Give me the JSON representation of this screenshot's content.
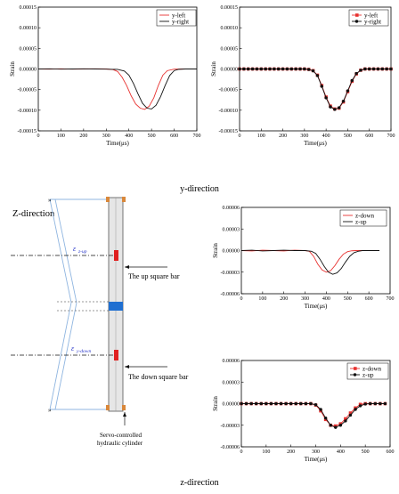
{
  "captions": {
    "y_direction": "y-direction",
    "z_direction_left": "Z-direction",
    "z_direction_bottom": "z-direction"
  },
  "diagram": {
    "label_up_bar": "The up square bar",
    "label_down_bar": "The down square bar",
    "servo_line1": "Servo-controlled",
    "servo_line2": "hydraulic cylinder",
    "gauge_up_symbol": "ε",
    "gauge_up_sub": "z-up",
    "gauge_down_symbol": "ε",
    "gauge_down_sub": "y-down",
    "colors": {
      "bar_mark": "#e02020",
      "mid_block": "#1f6fd1",
      "frame": "#8fb5e0",
      "clamp": "#d9883b"
    }
  },
  "chart_data": [
    {
      "type": "line",
      "xlabel": "Time(μs)",
      "ylabel": "Strain",
      "xlim": [
        0,
        700
      ],
      "ylim": [
        -0.00015,
        0.00015
      ],
      "xticks": [
        "0",
        "100",
        "200",
        "300",
        "400",
        "500",
        "600",
        "700"
      ],
      "yticks": [
        "0.00015",
        "0.00010",
        "0.00005",
        "0.00000",
        "-0.00005",
        "-0.00010",
        "-0.00015"
      ],
      "legend_position": "top-right",
      "series": [
        {
          "name": "y-left",
          "color": "#e8312f",
          "marker": "none",
          "x": [
            0,
            50,
            100,
            150,
            200,
            250,
            300,
            330,
            350,
            370,
            390,
            410,
            430,
            450,
            470,
            490,
            510,
            530,
            550,
            570,
            600,
            650,
            700
          ],
          "y": [
            0,
            -5e-07,
            5e-07,
            -5e-07,
            0,
            5e-07,
            0,
            -1.5e-06,
            -6e-06,
            -2e-05,
            -4e-05,
            -6.5e-05,
            -8.5e-05,
            -9.5e-05,
            -9.8e-05,
            -9e-05,
            -7e-05,
            -4e-05,
            -1.5e-05,
            -4e-06,
            -5e-07,
            0,
            0
          ]
        },
        {
          "name": "y-right",
          "color": "#111111",
          "marker": "none",
          "x": [
            0,
            50,
            100,
            150,
            200,
            250,
            300,
            350,
            380,
            400,
            420,
            440,
            460,
            480,
            500,
            520,
            540,
            560,
            580,
            600,
            620,
            650,
            700
          ],
          "y": [
            0,
            5e-07,
            -5e-07,
            0,
            5e-07,
            0,
            -5e-07,
            -1e-06,
            -5e-06,
            -1.5e-05,
            -3.5e-05,
            -6e-05,
            -8.3e-05,
            -9.5e-05,
            -9.7e-05,
            -8.8e-05,
            -6.7e-05,
            -4e-05,
            -1.6e-05,
            -4e-06,
            -8e-07,
            0,
            0
          ]
        }
      ]
    },
    {
      "type": "line",
      "xlabel": "Time(μs)",
      "ylabel": "Strain",
      "xlim": [
        0,
        700
      ],
      "ylim": [
        -0.00015,
        0.00015
      ],
      "xticks": [
        "0",
        "100",
        "200",
        "300",
        "400",
        "500",
        "600",
        "700"
      ],
      "yticks": [
        "0.00015",
        "0.00010",
        "0.00005",
        "0.00000",
        "-0.00005",
        "-0.00010",
        "-0.00015"
      ],
      "legend_position": "top-right",
      "series": [
        {
          "name": "y-left",
          "color": "#e8312f",
          "marker": "square",
          "x": [
            0,
            20,
            40,
            60,
            80,
            100,
            120,
            140,
            160,
            180,
            200,
            220,
            240,
            260,
            280,
            300,
            320,
            340,
            360,
            380,
            400,
            420,
            440,
            460,
            480,
            500,
            520,
            540,
            560,
            580,
            600,
            620,
            640,
            660,
            680,
            700
          ],
          "y": [
            0,
            0,
            0,
            0,
            0,
            0,
            0,
            0,
            0,
            0,
            0,
            0,
            0,
            0,
            0,
            0,
            -1e-06,
            -4e-06,
            -1.5e-05,
            -4e-05,
            -6.8e-05,
            -9e-05,
            -9.7e-05,
            -9.5e-05,
            -8e-05,
            -5.5e-05,
            -3e-05,
            -1.2e-05,
            -3e-06,
            0,
            0,
            0,
            0,
            0,
            0,
            0
          ]
        },
        {
          "name": "y-right",
          "color": "#111111",
          "marker": "circle",
          "x": [
            0,
            20,
            40,
            60,
            80,
            100,
            120,
            140,
            160,
            180,
            200,
            220,
            240,
            260,
            280,
            300,
            320,
            340,
            360,
            380,
            400,
            420,
            440,
            460,
            480,
            500,
            520,
            540,
            560,
            580,
            600,
            620,
            640,
            660,
            680,
            700
          ],
          "y": [
            0,
            0,
            0,
            0,
            0,
            0,
            0,
            0,
            0,
            0,
            0,
            0,
            0,
            0,
            0,
            0,
            -1.2e-06,
            -4.5e-06,
            -1.6e-05,
            -4.2e-05,
            -7e-05,
            -9.2e-05,
            -9.8e-05,
            -9.4e-05,
            -7.8e-05,
            -5.3e-05,
            -2.8e-05,
            -1.1e-05,
            -3e-06,
            0,
            0,
            0,
            0,
            0,
            0,
            0
          ]
        }
      ]
    },
    {
      "type": "line",
      "xlabel": "Time(μs)",
      "ylabel": "Strain",
      "xlim": [
        0,
        700
      ],
      "ylim": [
        -6e-05,
        6e-05
      ],
      "xticks": [
        "0",
        "100",
        "200",
        "300",
        "400",
        "500",
        "600",
        "700"
      ],
      "yticks": [
        "0.00006",
        "0.00003",
        "0.00000",
        "-0.00003",
        "-0.00006"
      ],
      "legend_position": "top-right",
      "series": [
        {
          "name": "z-down",
          "color": "#e8312f",
          "marker": "none",
          "x": [
            0,
            50,
            100,
            150,
            200,
            250,
            300,
            320,
            340,
            360,
            380,
            400,
            420,
            440,
            460,
            480,
            500,
            520,
            540,
            560,
            580,
            600
          ],
          "y": [
            0,
            -5e-07,
            5e-07,
            0,
            -5e-07,
            5e-07,
            0,
            -1e-06,
            -8e-06,
            -1.9e-05,
            -2.7e-05,
            -3e-05,
            -2.8e-05,
            -2.1e-05,
            -1.2e-05,
            -5e-06,
            -1.5e-06,
            -3e-07,
            0,
            0,
            0,
            0
          ]
        },
        {
          "name": "z-up",
          "color": "#111111",
          "marker": "none",
          "x": [
            0,
            50,
            100,
            150,
            200,
            250,
            300,
            330,
            350,
            370,
            390,
            410,
            430,
            450,
            470,
            490,
            510,
            530,
            550,
            570,
            600,
            650
          ],
          "y": [
            0,
            5e-07,
            -5e-07,
            0,
            5e-07,
            0,
            0,
            -1e-06,
            -4e-06,
            -1.2e-05,
            -2.2e-05,
            -3e-05,
            -3.3e-05,
            -3.1e-05,
            -2.5e-05,
            -1.6e-05,
            -8e-06,
            -3e-06,
            -1e-06,
            0,
            0,
            0
          ]
        }
      ]
    },
    {
      "type": "line",
      "xlabel": "Time(μs)",
      "ylabel": "Strain",
      "xlim": [
        0,
        600
      ],
      "ylim": [
        -6e-05,
        6e-05
      ],
      "xticks": [
        "0",
        "100",
        "200",
        "300",
        "400",
        "500",
        "600"
      ],
      "yticks": [
        "0.00006",
        "0.00003",
        "0.00000",
        "-0.00003",
        "-0.00006"
      ],
      "legend_position": "top-right",
      "series": [
        {
          "name": "z-down",
          "color": "#e8312f",
          "marker": "square",
          "x": [
            0,
            20,
            40,
            60,
            80,
            100,
            120,
            140,
            160,
            180,
            200,
            220,
            240,
            260,
            280,
            300,
            320,
            340,
            360,
            380,
            400,
            420,
            440,
            460,
            480,
            500,
            520,
            540,
            560,
            580
          ],
          "y": [
            0,
            0,
            0,
            0,
            0,
            0,
            0,
            0,
            0,
            0,
            0,
            0,
            0,
            0,
            0,
            -2e-06,
            -1e-05,
            -2.2e-05,
            -3e-05,
            -3.1e-05,
            -2.8e-05,
            -2.1e-05,
            -1.3e-05,
            -6e-06,
            -1e-06,
            0,
            0,
            0,
            0,
            0
          ]
        },
        {
          "name": "z-up",
          "color": "#111111",
          "marker": "circle",
          "x": [
            0,
            20,
            40,
            60,
            80,
            100,
            120,
            140,
            160,
            180,
            200,
            220,
            240,
            260,
            280,
            300,
            320,
            340,
            360,
            380,
            400,
            420,
            440,
            460,
            480,
            500,
            520,
            540,
            560,
            580
          ],
          "y": [
            0,
            0,
            0,
            0,
            0,
            0,
            0,
            0,
            0,
            0,
            0,
            0,
            0,
            0,
            0,
            -1.5e-06,
            -8e-06,
            -2e-05,
            -3e-05,
            -3.3e-05,
            -3e-05,
            -2.4e-05,
            -1.6e-05,
            -8e-06,
            -3e-06,
            -5e-07,
            0,
            0,
            0,
            0
          ]
        }
      ]
    }
  ]
}
